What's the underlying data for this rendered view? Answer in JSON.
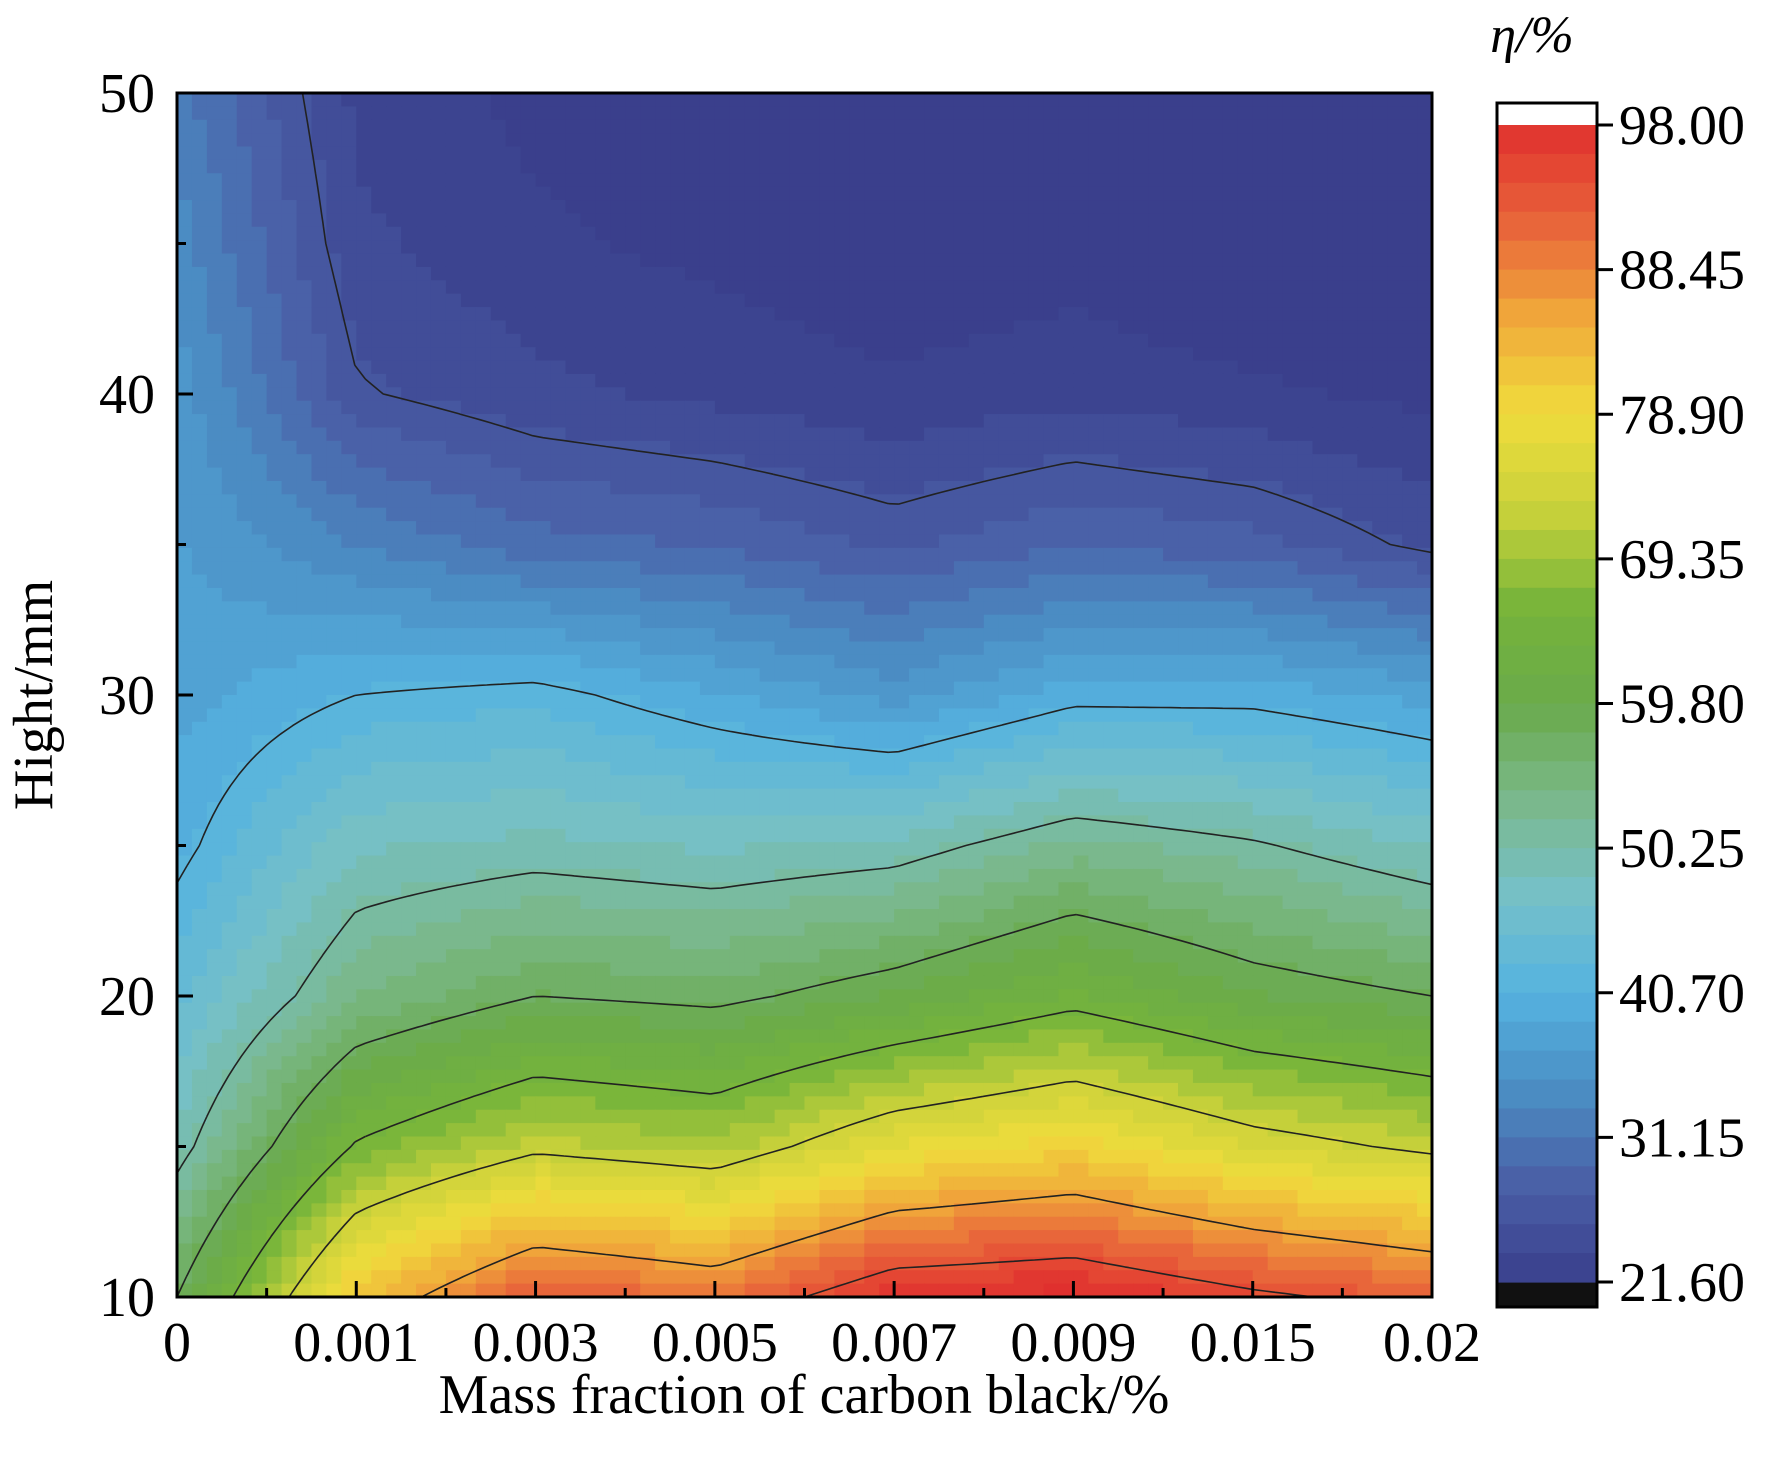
{
  "chart_data": {
    "type": "contour",
    "xlabel": "Mass fraction of carbon black/%",
    "ylabel": "Hight/mm",
    "colorbar_label": "η/%",
    "x_tick_labels": [
      "0",
      "0.001",
      "0.003",
      "0.005",
      "0.007",
      "0.009",
      "0.015",
      "0.02"
    ],
    "y_ticks": [
      10,
      20,
      30,
      40,
      50
    ],
    "ylim": [
      10,
      50
    ],
    "colorbar_ticks": [
      "98.00",
      "88.45",
      "78.90",
      "69.35",
      "59.80",
      "50.25",
      "40.70",
      "31.15",
      "21.60"
    ],
    "colorbar_range": [
      21.6,
      98.0
    ],
    "heights": [
      10,
      15,
      20,
      25,
      30,
      35,
      40,
      45,
      50
    ],
    "eta_grid": [
      [
        58,
        82,
        93,
        90,
        98,
        99,
        95,
        92
      ],
      [
        49,
        66,
        72,
        70,
        77,
        80,
        75,
        72
      ],
      [
        44,
        54,
        58,
        57,
        60,
        64,
        60,
        58
      ],
      [
        40,
        48,
        49,
        48,
        49,
        53,
        51,
        48
      ],
      [
        38,
        41,
        42,
        39,
        36,
        40,
        40,
        38
      ],
      [
        37,
        33,
        30,
        29,
        27,
        29,
        28,
        25
      ],
      [
        36,
        26,
        24,
        23,
        22,
        23,
        22,
        21
      ],
      [
        34,
        24,
        22,
        21,
        20,
        20.5,
        19,
        18
      ],
      [
        32,
        23,
        21,
        20,
        19,
        19,
        18,
        17
      ]
    ],
    "contour_levels": [
      25.7,
      41.0,
      50.6,
      58.0,
      65.5,
      73.0,
      86.0,
      94.0
    ],
    "colorscale": [
      "#3a3f8c",
      "#4a5fa6",
      "#4b8ec4",
      "#55b3e0",
      "#76c0c8",
      "#7ab88a",
      "#6aaa4a",
      "#76b43a",
      "#c9d23a",
      "#f0dc3c",
      "#f0a83a",
      "#e8623a",
      "#e0302e"
    ],
    "colorbar_overflow_color": "#ffffff",
    "colorbar_underflow_color": "#111111"
  }
}
